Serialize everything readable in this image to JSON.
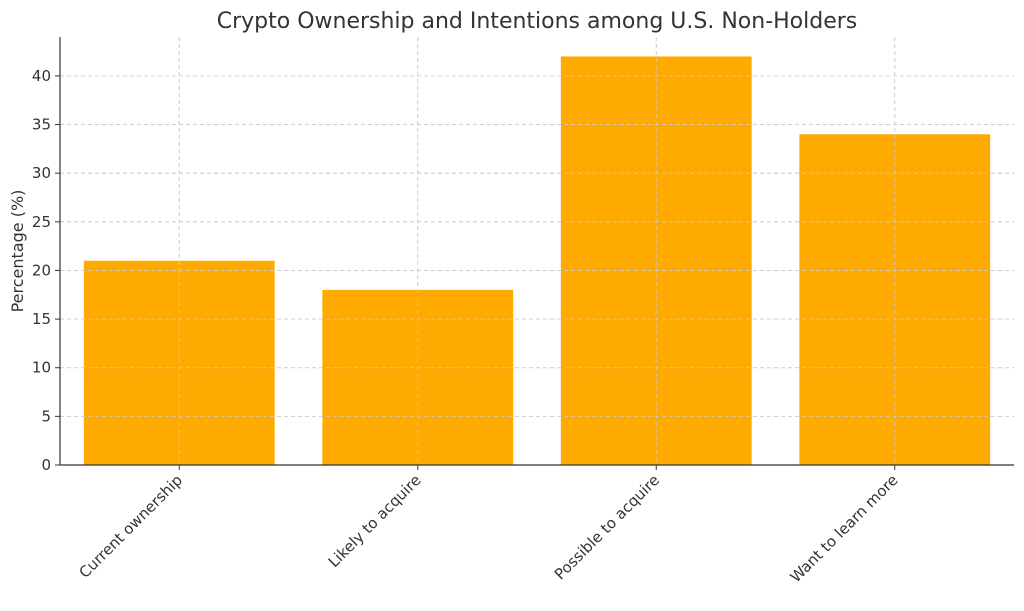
{
  "chart_data": {
    "type": "bar",
    "title": "Crypto Ownership and Intentions among U.S. Non-Holders",
    "xlabel": "",
    "ylabel": "Percentage (%)",
    "categories": [
      "Current ownership",
      "Likely to acquire",
      "Possible to acquire",
      "Want to learn more"
    ],
    "values": [
      21,
      18,
      42,
      34
    ],
    "ylim": [
      0,
      44
    ],
    "yticks": [
      0,
      5,
      10,
      15,
      20,
      25,
      30,
      35,
      40
    ],
    "bar_color": "#FFAA00",
    "grid": true,
    "legend": "none"
  }
}
